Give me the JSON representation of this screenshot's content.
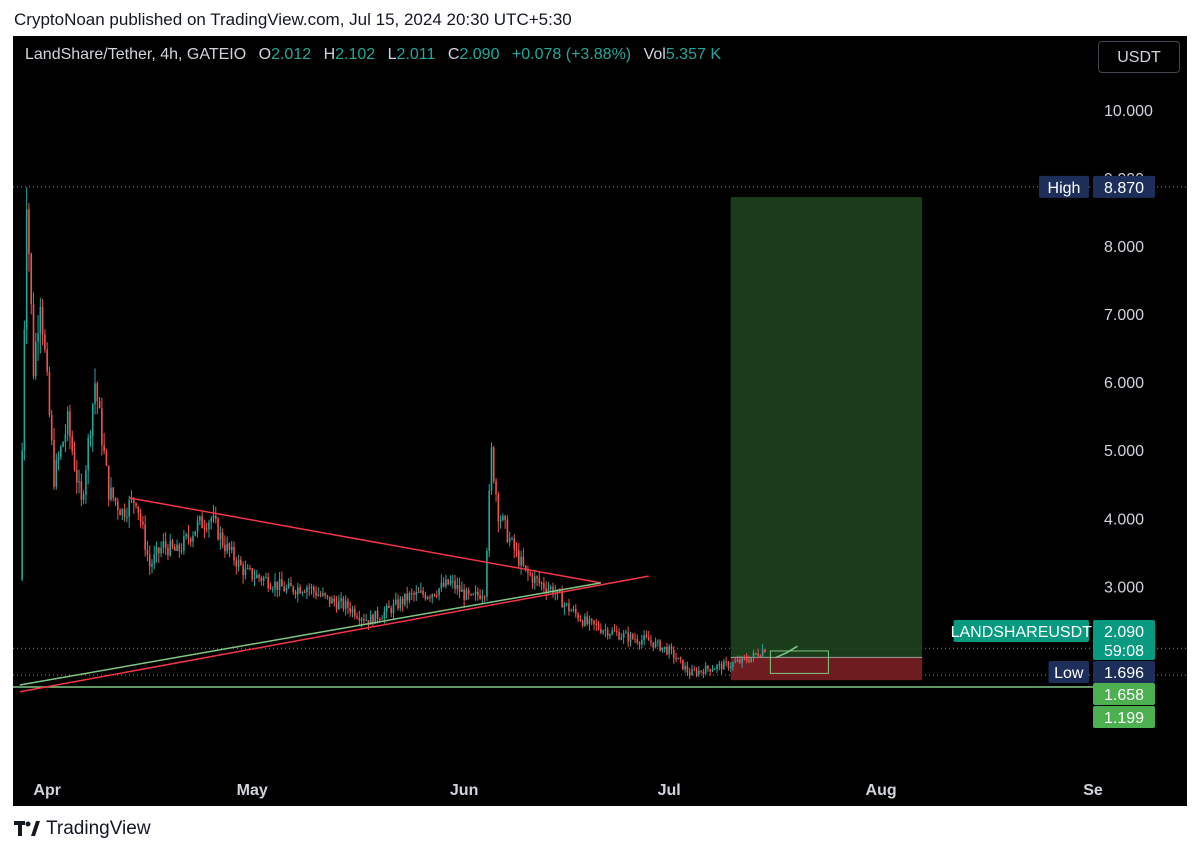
{
  "caption": "CryptoNoan published on TradingView.com, Jul 15, 2024 20:30 UTC+5:30",
  "legend": {
    "symbol": "LandShare/Tether, 4h, GATEIO",
    "o_label": "O",
    "o": "2.012",
    "h_label": "H",
    "h": "2.102",
    "l_label": "L",
    "l": "2.011",
    "c_label": "C",
    "c": "2.090",
    "change": "+0.078 (+3.88%)",
    "vol_label": "Vol",
    "vol": "5.357 K"
  },
  "currency_button": "USDT",
  "footer_brand": "TradingView",
  "colors": {
    "up": "#26a69a",
    "down": "#ef5350",
    "trend_red": "#f23645",
    "trend_green": "#81c784",
    "target_zone": "#1e4620",
    "stop_zone": "#7a1f24",
    "badge_blue": "#1e2e5a",
    "badge_green": "#089981",
    "badge_lime": "#4caf50"
  },
  "chart_data": {
    "type": "candlestick",
    "xlabel": "",
    "ylabel": "",
    "x_ticks": [
      "Apr",
      "May",
      "Jun",
      "Jul",
      "Aug",
      "Se"
    ],
    "y_ticks": [
      "10.000",
      "9.000",
      "8.000",
      "7.000",
      "6.000",
      "5.000",
      "4.000",
      "3.000"
    ],
    "ylim": [
      0.8,
      10.5
    ],
    "grid": false,
    "price_path": [
      [
        "2024-03-28",
        3.1
      ],
      [
        "2024-03-29",
        8.8
      ],
      [
        "2024-03-30",
        6.2
      ],
      [
        "2024-03-31",
        7.3
      ],
      [
        "2024-04-02",
        4.6
      ],
      [
        "2024-04-04",
        5.4
      ],
      [
        "2024-04-06",
        4.2
      ],
      [
        "2024-04-08",
        6.0
      ],
      [
        "2024-04-10",
        4.4
      ],
      [
        "2024-04-12",
        4.1
      ],
      [
        "2024-04-14",
        4.3
      ],
      [
        "2024-04-16",
        3.3
      ],
      [
        "2024-04-18",
        3.6
      ],
      [
        "2024-04-20",
        3.5
      ],
      [
        "2024-04-23",
        3.9
      ],
      [
        "2024-04-25",
        4.0
      ],
      [
        "2024-04-27",
        3.6
      ],
      [
        "2024-04-30",
        3.2
      ],
      [
        "2024-05-03",
        3.1
      ],
      [
        "2024-05-06",
        2.95
      ],
      [
        "2024-05-09",
        3.0
      ],
      [
        "2024-05-12",
        2.8
      ],
      [
        "2024-05-15",
        2.7
      ],
      [
        "2024-05-18",
        2.5
      ],
      [
        "2024-05-21",
        2.65
      ],
      [
        "2024-05-24",
        2.85
      ],
      [
        "2024-05-27",
        2.9
      ],
      [
        "2024-05-30",
        3.05
      ],
      [
        "2024-06-02",
        2.8
      ],
      [
        "2024-06-04",
        2.95
      ],
      [
        "2024-06-05",
        4.95
      ],
      [
        "2024-06-06",
        4.1
      ],
      [
        "2024-06-08",
        3.6
      ],
      [
        "2024-06-10",
        3.2
      ],
      [
        "2024-06-12",
        3.05
      ],
      [
        "2024-06-14",
        2.95
      ],
      [
        "2024-06-16",
        2.7
      ],
      [
        "2024-06-19",
        2.45
      ],
      [
        "2024-06-22",
        2.35
      ],
      [
        "2024-06-25",
        2.25
      ],
      [
        "2024-06-28",
        2.2
      ],
      [
        "2024-07-01",
        2.05
      ],
      [
        "2024-07-04",
        1.72
      ],
      [
        "2024-07-07",
        1.8
      ],
      [
        "2024-07-10",
        1.85
      ],
      [
        "2024-07-13",
        1.95
      ],
      [
        "2024-07-15",
        2.09
      ]
    ],
    "trendlines": [
      {
        "color": "trend_red",
        "from": [
          "2024-04-13",
          4.3
        ],
        "to": [
          "2024-06-21",
          3.05
        ]
      },
      {
        "color": "trend_red",
        "from": [
          "2024-03-28",
          1.45
        ],
        "to": [
          "2024-06-28",
          3.15
        ]
      },
      {
        "color": "trend_green",
        "from": [
          "2024-03-28",
          1.55
        ],
        "to": [
          "2024-06-21",
          3.05
        ]
      }
    ],
    "position": {
      "start": "2024-07-10",
      "end": "2024-08-07",
      "entry": 1.955,
      "target": 8.72,
      "stop": 1.62
    },
    "levels": [
      {
        "label": "High",
        "value": "8.870",
        "price": 8.87,
        "style": "blue"
      },
      {
        "label": "LANDSHAREUSDT",
        "value": "2.090",
        "sub": "59:08",
        "price": 2.09,
        "style": "green"
      },
      {
        "label": "Low",
        "value": "1.696",
        "price": 1.696,
        "style": "blue"
      },
      {
        "label": "",
        "value": "1.658",
        "price": 1.658,
        "style": "lime"
      },
      {
        "label": "",
        "value": "1.199",
        "price": 1.199,
        "style": "lime"
      }
    ],
    "horizontal_line_price": 1.52
  }
}
